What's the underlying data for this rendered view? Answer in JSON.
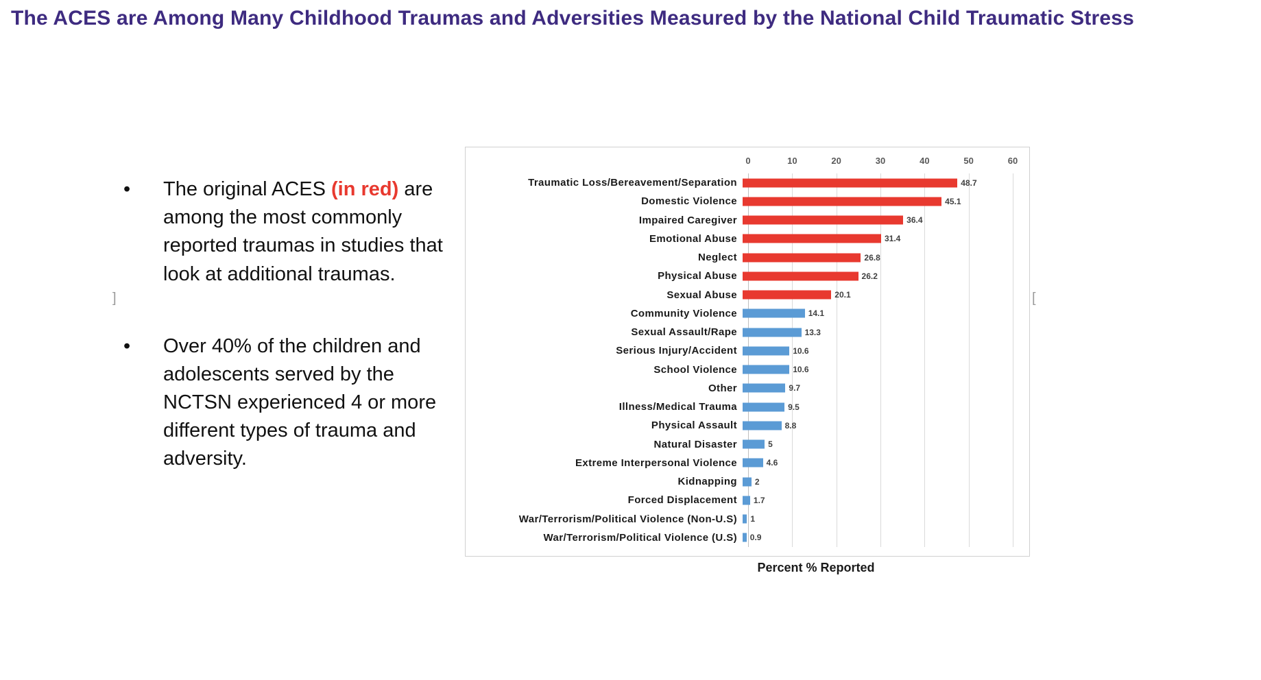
{
  "slide": {
    "title": "The ACES are Among Many Childhood Traumas and Adversities Measured by the National Child Traumatic Stress",
    "bullets": {
      "marker": "•",
      "b1_pre": "The original ACES ",
      "b1_red": "(in red)",
      "b1_post": " are among the most commonly reported traumas in studies that look at additional traumas.",
      "b2": "Over 40% of the children and adolescents served by the NCTSN experienced 4 or more different types of trauma and adversity."
    },
    "artifacts": {
      "left_bracket": "]",
      "right_bracket": "["
    }
  },
  "chart_data": {
    "type": "bar",
    "orientation": "horizontal",
    "title": "",
    "xlabel": "Percent % Reported",
    "ylabel": "",
    "xlim": [
      0,
      60
    ],
    "x_ticks": [
      0,
      10,
      20,
      30,
      40,
      50,
      60
    ],
    "grid": true,
    "legend": false,
    "categories": [
      "Traumatic Loss/Bereavement/Separation",
      "Domestic Violence",
      "Impaired Caregiver",
      "Emotional Abuse",
      "Neglect",
      "Physical Abuse",
      "Sexual Abuse",
      "Community Violence",
      "Sexual Assault/Rape",
      "Serious Injury/Accident",
      "School Violence",
      "Other",
      "Illness/Medical Trauma",
      "Physical Assault",
      "Natural Disaster",
      "Extreme Interpersonal Violence",
      "Kidnapping",
      "Forced Displacement",
      "War/Terrorism/Political Violence (Non-U.S)",
      "War/Terrorism/Political Violence (U.S)"
    ],
    "values": [
      48.7,
      45.1,
      36.4,
      31.4,
      26.8,
      26.2,
      20.1,
      14.1,
      13.3,
      10.6,
      10.6,
      9.7,
      9.5,
      8.8,
      5,
      4.6,
      2,
      1.7,
      1,
      0.9
    ],
    "value_labels": [
      "48.7",
      "45.1",
      "36.4",
      "31.4",
      "26.8",
      "26.2",
      "20.1",
      "14.1",
      "13.3",
      "10.6",
      "10.6",
      "9.7",
      "9.5",
      "8.8",
      "5",
      "4.6",
      "2",
      "1.7",
      "1",
      "0.9"
    ],
    "aces_red_count": 7,
    "colors": {
      "aces_red": "#e8392f",
      "other_blue": "#5b9bd5"
    }
  }
}
